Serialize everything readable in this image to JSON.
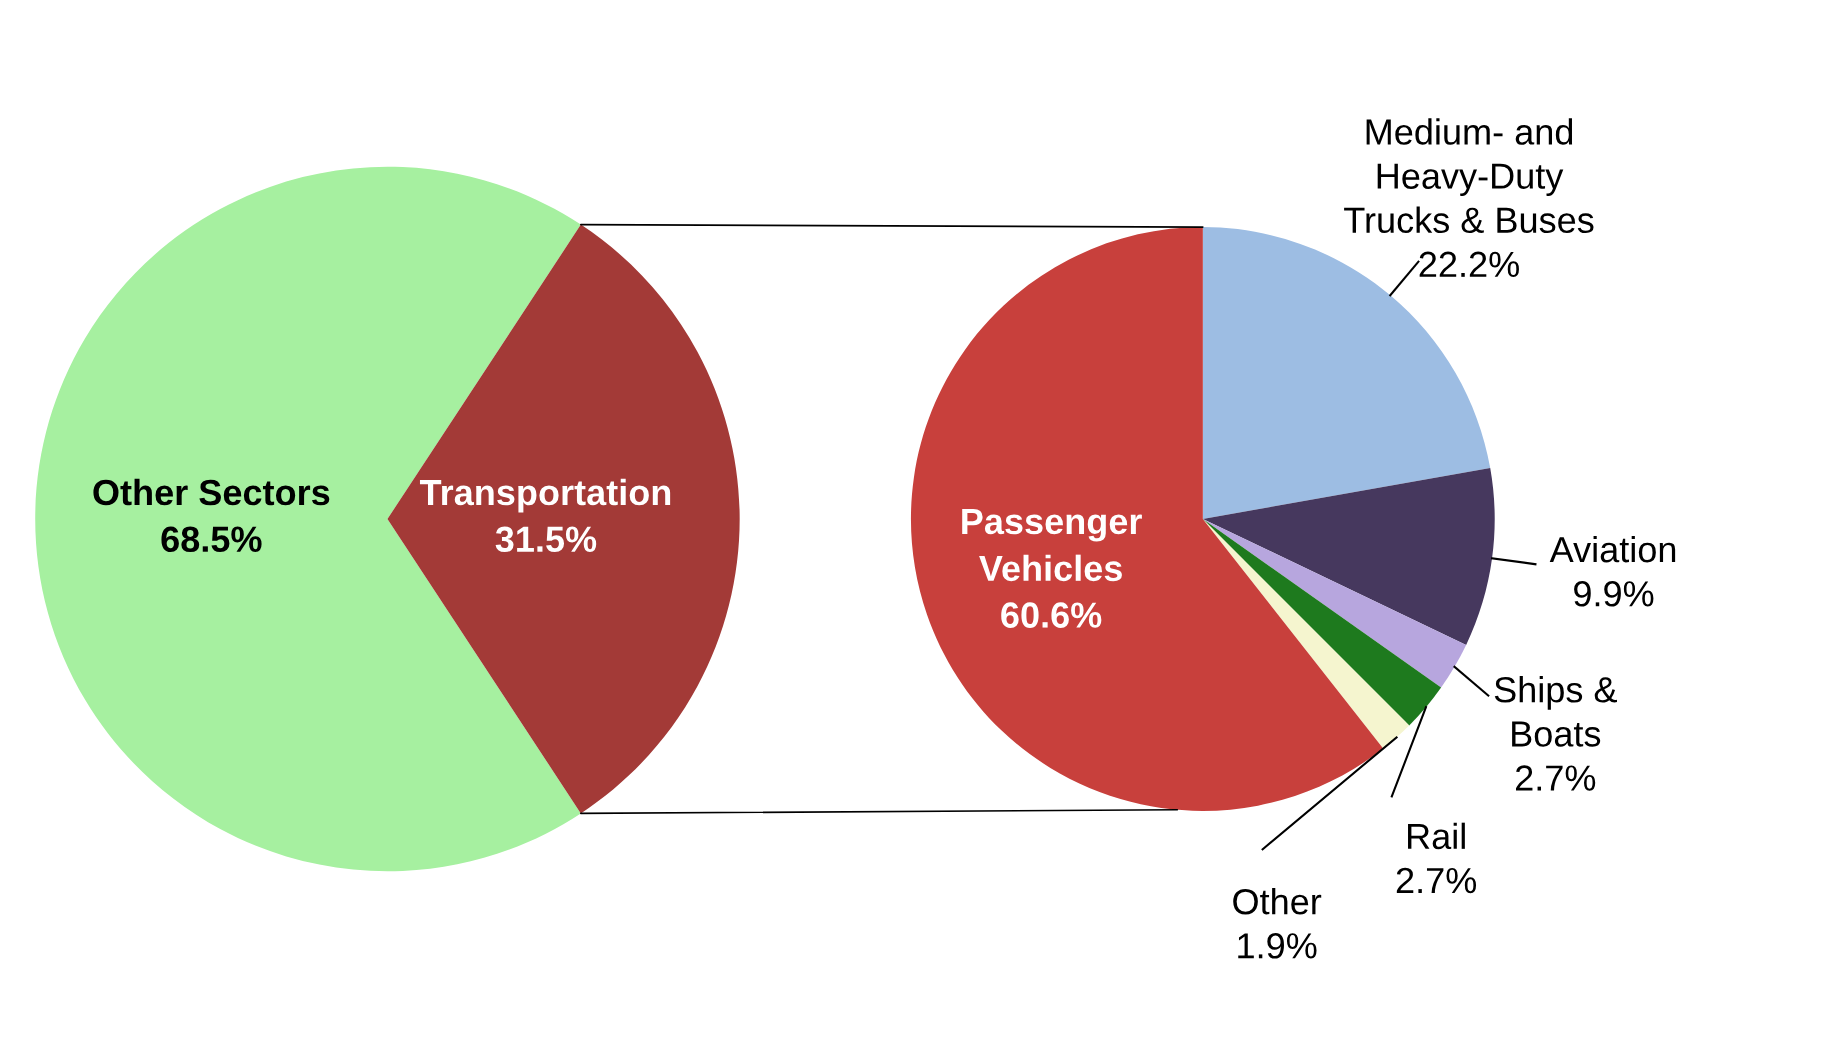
{
  "chart_data": [
    {
      "type": "pie",
      "categories": [
        "Other Sectors",
        "Transportation"
      ],
      "values": [
        68.5,
        31.5
      ],
      "value_labels": [
        "68.5%",
        "31.5%"
      ],
      "colors": [
        "#a6f0a0",
        "#a33a37"
      ]
    },
    {
      "type": "pie",
      "categories": [
        "Medium- and\nHeavy-Duty\nTrucks & Buses",
        "Aviation",
        "Ships &\nBoats",
        "Rail",
        "Other",
        "Passenger\nVehicles"
      ],
      "values": [
        22.2,
        9.9,
        2.7,
        2.7,
        1.9,
        60.6
      ],
      "value_labels": [
        "22.2%",
        "9.9%",
        "2.7%",
        "2.7%",
        "1.9%",
        "60.6%"
      ],
      "colors": [
        "#9dbde3",
        "#46385e",
        "#b7a6de",
        "#1e7a1e",
        "#f5f5cf",
        "#c8403c"
      ]
    }
  ]
}
